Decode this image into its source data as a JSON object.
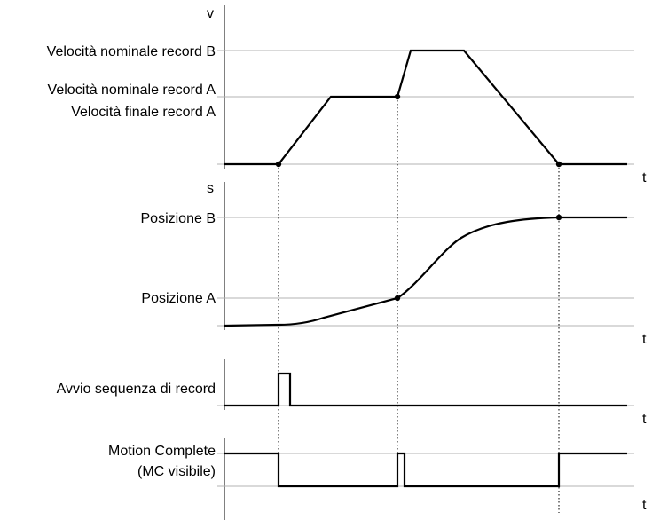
{
  "velocity_panel": {
    "axis_label": "v",
    "time_label": "t",
    "labels": {
      "nominal_b": "Velocità nominale record B",
      "nominal_a": "Velocità nominale record A",
      "final_a": "Velocità finale record A"
    }
  },
  "position_panel": {
    "axis_label": "s",
    "time_label": "t",
    "labels": {
      "position_b": "Posizione B",
      "position_a": "Posizione A"
    }
  },
  "start_panel": {
    "time_label": "t",
    "label": "Avvio sequenza di record"
  },
  "mc_panel": {
    "time_label": "t",
    "label_line1": "Motion Complete",
    "label_line2": "(MC visibile)"
  }
}
